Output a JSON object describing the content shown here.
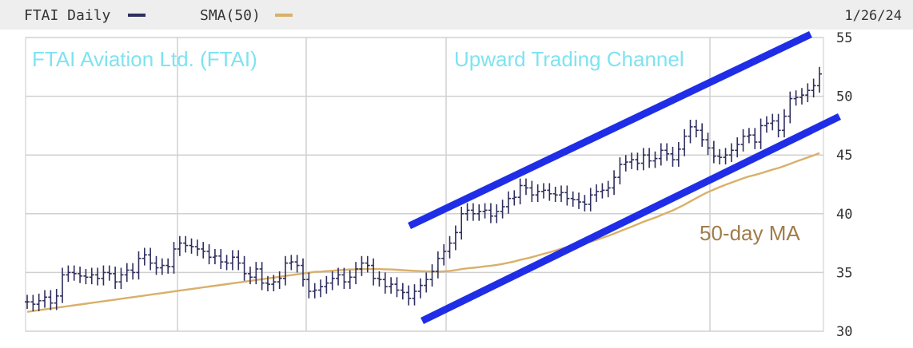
{
  "chart_data": {
    "type": "bar",
    "title": "FTAI Aviation Ltd. (FTAI)",
    "legend": [
      {
        "name": "FTAI Daily",
        "color": "#2e2e5e"
      },
      {
        "name": "SMA(50)",
        "color": "#d9b06a"
      }
    ],
    "date_label": "1/26/24",
    "ylim": [
      30,
      55
    ],
    "y_ticks": [
      "55",
      "50",
      "45",
      "40",
      "35",
      "30"
    ],
    "grid": true,
    "annotations": [
      {
        "text": "FTAI Aviation Ltd. (FTAI)",
        "color": "#7fe3f0"
      },
      {
        "text": "Upward Trading Channel",
        "color": "#7fe3f0"
      },
      {
        "text": "50-day MA",
        "color": "#a07c4a"
      }
    ],
    "channel_color": "#1f2ee6",
    "close_series": [
      32.5,
      32.3,
      32.6,
      32.9,
      32.4,
      33.0,
      34.8,
      35.0,
      34.9,
      34.7,
      34.6,
      34.8,
      34.5,
      35.0,
      34.9,
      34.2,
      34.8,
      35.2,
      35.0,
      36.2,
      36.5,
      35.8,
      35.4,
      35.6,
      35.5,
      37.0,
      37.5,
      37.3,
      37.2,
      37.0,
      36.8,
      36.3,
      36.4,
      35.9,
      35.8,
      36.3,
      35.8,
      34.9,
      34.6,
      35.3,
      34.1,
      34.0,
      34.2,
      34.5,
      35.8,
      35.9,
      35.6,
      34.4,
      33.4,
      33.5,
      33.8,
      34.1,
      34.5,
      34.8,
      34.2,
      34.6,
      35.3,
      35.8,
      35.6,
      34.5,
      34.4,
      33.8,
      34.0,
      33.5,
      33.3,
      32.8,
      33.4,
      33.9,
      34.4,
      35.1,
      36.2,
      36.8,
      37.5,
      38.4,
      40.0,
      40.3,
      40.0,
      40.2,
      40.3,
      39.8,
      40.2,
      40.6,
      41.3,
      41.4,
      42.4,
      42.2,
      41.6,
      41.9,
      42.0,
      41.7,
      41.6,
      41.8,
      41.3,
      41.2,
      41.0,
      40.8,
      41.6,
      41.9,
      42.0,
      42.2,
      43.1,
      44.2,
      44.4,
      44.6,
      44.3,
      45.0,
      44.5,
      44.7,
      45.4,
      45.1,
      44.6,
      45.5,
      46.6,
      47.4,
      47.1,
      46.3,
      45.6,
      44.9,
      44.8,
      45.0,
      45.4,
      45.9,
      46.6,
      46.7,
      46.1,
      47.5,
      47.7,
      47.9,
      47.1,
      48.3,
      49.8,
      49.9,
      50.1,
      50.5,
      50.9,
      51.9
    ]
  }
}
